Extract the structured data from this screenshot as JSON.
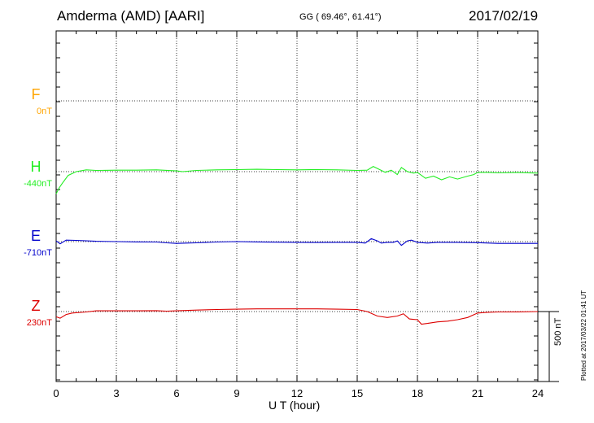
{
  "header": {
    "station": "Amderma (AMD)  [AARI]",
    "coords": "GG ( 69.46°,  61.41°)",
    "date": "2017/02/19"
  },
  "chart_data": {
    "type": "line",
    "xlabel": "U T (hour)",
    "xlim": [
      0,
      24
    ],
    "xticks": [
      "0",
      "3",
      "6",
      "9",
      "12",
      "15",
      "18",
      "21",
      "24"
    ],
    "scale_label": "500 nT",
    "plotted_note": "Plotted at 2017/03/22 01:41 UT",
    "series": [
      {
        "name": "F",
        "offset_label": "0nT",
        "color": "#ffa500",
        "points": []
      },
      {
        "name": "H",
        "offset_label": "-440nT",
        "color": "#22ee22",
        "points": [
          [
            0,
            -150
          ],
          [
            0.15,
            -110
          ],
          [
            0.3,
            -80
          ],
          [
            0.6,
            -25
          ],
          [
            1.0,
            0
          ],
          [
            1.5,
            12
          ],
          [
            2,
            8
          ],
          [
            3,
            10
          ],
          [
            4,
            10
          ],
          [
            5,
            12
          ],
          [
            6,
            5
          ],
          [
            6.3,
            0
          ],
          [
            7,
            8
          ],
          [
            8,
            12
          ],
          [
            9,
            14
          ],
          [
            10,
            16
          ],
          [
            11,
            14
          ],
          [
            12,
            12
          ],
          [
            13,
            14
          ],
          [
            14,
            12
          ],
          [
            15,
            8
          ],
          [
            15.5,
            10
          ],
          [
            15.8,
            35
          ],
          [
            16.1,
            15
          ],
          [
            16.4,
            -5
          ],
          [
            16.7,
            10
          ],
          [
            17.0,
            -20
          ],
          [
            17.2,
            28
          ],
          [
            17.5,
            0
          ],
          [
            17.8,
            -10
          ],
          [
            18.0,
            -5
          ],
          [
            18.4,
            -45
          ],
          [
            18.8,
            -30
          ],
          [
            19.2,
            -55
          ],
          [
            19.6,
            -35
          ],
          [
            20.0,
            -50
          ],
          [
            20.5,
            -30
          ],
          [
            20.8,
            -20
          ],
          [
            21.0,
            -5
          ],
          [
            21.5,
            -5
          ],
          [
            22,
            -8
          ],
          [
            23,
            -6
          ],
          [
            24,
            -10
          ]
        ]
      },
      {
        "name": "E",
        "offset_label": "-710nT",
        "color": "#0000cc",
        "points": [
          [
            0,
            5
          ],
          [
            0.2,
            -15
          ],
          [
            0.5,
            10
          ],
          [
            1,
            8
          ],
          [
            2,
            2
          ],
          [
            3,
            0
          ],
          [
            4,
            -2
          ],
          [
            5,
            -3
          ],
          [
            5.5,
            -8
          ],
          [
            6,
            -12
          ],
          [
            6.5,
            -10
          ],
          [
            7,
            -8
          ],
          [
            8,
            -3
          ],
          [
            9,
            0
          ],
          [
            10,
            -2
          ],
          [
            11,
            -4
          ],
          [
            12,
            -5
          ],
          [
            13,
            -6
          ],
          [
            14,
            -5
          ],
          [
            15,
            -5
          ],
          [
            15.4,
            -10
          ],
          [
            15.7,
            20
          ],
          [
            16.0,
            5
          ],
          [
            16.2,
            -10
          ],
          [
            16.5,
            -5
          ],
          [
            16.8,
            -5
          ],
          [
            17.0,
            5
          ],
          [
            17.2,
            -25
          ],
          [
            17.5,
            5
          ],
          [
            17.7,
            10
          ],
          [
            18,
            -5
          ],
          [
            18.5,
            -10
          ],
          [
            19,
            -5
          ],
          [
            20,
            -5
          ],
          [
            21,
            -7
          ],
          [
            22,
            -12
          ],
          [
            23,
            -12
          ],
          [
            24,
            -12
          ]
        ]
      },
      {
        "name": "Z",
        "offset_label": "230nT",
        "color": "#dd0000",
        "points": [
          [
            0,
            -35
          ],
          [
            0.2,
            -45
          ],
          [
            0.5,
            -20
          ],
          [
            0.8,
            -10
          ],
          [
            1.5,
            -3
          ],
          [
            2,
            5
          ],
          [
            3,
            5
          ],
          [
            4,
            5
          ],
          [
            5,
            6
          ],
          [
            5.5,
            3
          ],
          [
            6,
            5
          ],
          [
            7,
            10
          ],
          [
            8,
            14
          ],
          [
            9,
            16
          ],
          [
            10,
            18
          ],
          [
            11,
            18
          ],
          [
            12,
            18
          ],
          [
            13,
            18
          ],
          [
            14,
            16
          ],
          [
            15,
            14
          ],
          [
            15.5,
            0
          ],
          [
            16,
            -30
          ],
          [
            16.5,
            -40
          ],
          [
            17,
            -30
          ],
          [
            17.3,
            -15
          ],
          [
            17.6,
            -50
          ],
          [
            18,
            -55
          ],
          [
            18.2,
            -85
          ],
          [
            18.5,
            -80
          ],
          [
            19,
            -70
          ],
          [
            19.5,
            -65
          ],
          [
            20,
            -55
          ],
          [
            20.5,
            -40
          ],
          [
            21,
            -10
          ],
          [
            21.5,
            -5
          ],
          [
            22,
            -3
          ],
          [
            23,
            -2
          ],
          [
            24,
            0
          ]
        ]
      }
    ],
    "grid": true
  }
}
